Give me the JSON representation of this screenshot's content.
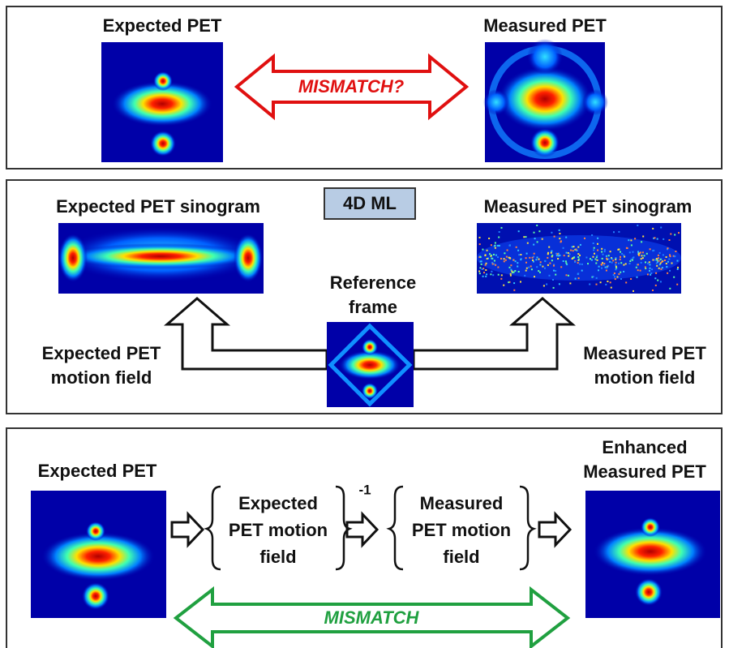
{
  "top": {
    "left_label": "Expected PET",
    "right_label": "Measured PET",
    "arrow_label": "MISMATCH?"
  },
  "middle": {
    "badge": "4D ML",
    "left_label": "Expected PET sinogram",
    "right_label": "Measured PET sinogram",
    "center_label": [
      "Reference",
      "frame"
    ],
    "left_field": [
      "Expected PET",
      "motion field"
    ],
    "right_field": [
      "Measured PET",
      "motion field"
    ]
  },
  "bottom": {
    "left_label": "Expected PET",
    "right_label": [
      "Enhanced",
      "Measured PET"
    ],
    "operators": [
      {
        "lines": [
          "Expected",
          "PET motion",
          "field"
        ],
        "exponent": "-1"
      },
      {
        "lines": [
          "Measured",
          "PET motion",
          "field"
        ]
      }
    ],
    "arrow_label": "MISMATCH"
  }
}
